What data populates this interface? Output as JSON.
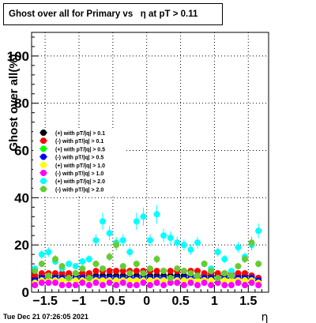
{
  "title": "Ghost over all for Primary vs   η at pT > 0.11",
  "timestamp": "Tue Dec 21 07:26:05 2021",
  "chart_data": {
    "type": "scatter",
    "xlabel": "η",
    "ylabel": "Ghost over all(%)",
    "xlim": [
      -1.7,
      1.8
    ],
    "ylim": [
      0,
      110
    ],
    "x_ticks": [
      -1.5,
      -1,
      -0.5,
      0,
      0.5,
      1,
      1.5
    ],
    "x_tick_labels": [
      "−1.5",
      "−1",
      "−0.5",
      "0",
      "0.5",
      "1",
      "1.5"
    ],
    "y_ticks": [
      0,
      20,
      40,
      60,
      80,
      100
    ],
    "y_tick_labels": [
      "0",
      "20",
      "40",
      "60",
      "80",
      "100"
    ],
    "grid": true,
    "legend_position": "left-middle",
    "x": [
      -1.65,
      -1.55,
      -1.45,
      -1.35,
      -1.25,
      -1.15,
      -1.05,
      -0.95,
      -0.85,
      -0.75,
      -0.65,
      -0.55,
      -0.45,
      -0.35,
      -0.25,
      -0.15,
      -0.05,
      0.05,
      0.15,
      0.25,
      0.35,
      0.45,
      0.55,
      0.65,
      0.75,
      0.85,
      0.95,
      1.05,
      1.15,
      1.25,
      1.35,
      1.45,
      1.55,
      1.65
    ],
    "series": [
      {
        "name": "(+) with pT/|q| > 0.1",
        "color": "#000000",
        "marker": "circle",
        "values": [
          6,
          7,
          7,
          7,
          7,
          7,
          7,
          7,
          7,
          7,
          7,
          7,
          7,
          7,
          7,
          7,
          7,
          7,
          7,
          7,
          7,
          7,
          7,
          7,
          7,
          7,
          7,
          7,
          7,
          7,
          7,
          7,
          7,
          6
        ]
      },
      {
        "name": "(-) with pT/|q| > 0.1",
        "color": "#ff0000",
        "marker": "circle",
        "values": [
          7,
          8,
          8,
          8,
          8,
          8,
          8,
          8,
          8,
          9,
          9,
          9,
          9,
          9,
          9,
          9,
          9,
          9,
          9,
          9,
          9,
          9,
          9,
          9,
          9,
          8,
          8,
          8,
          8,
          8,
          8,
          8,
          7,
          6
        ]
      },
      {
        "name": "(+) with pT/|q| > 0.5",
        "color": "#00ff00",
        "marker": "circle",
        "values": [
          5,
          6,
          6,
          6,
          6,
          6,
          6,
          6,
          6,
          6,
          6,
          6,
          6,
          6,
          6,
          6,
          6,
          6,
          6,
          6,
          6,
          6,
          6,
          6,
          6,
          6,
          6,
          6,
          6,
          6,
          6,
          6,
          6,
          5
        ]
      },
      {
        "name": "(-) with pT/|q| > 0.5",
        "color": "#0000ff",
        "marker": "circle",
        "values": [
          5,
          6,
          6,
          6,
          6,
          6,
          6,
          6,
          6,
          6,
          6,
          6,
          6,
          6,
          6,
          6,
          6,
          6,
          6,
          6,
          6,
          6,
          6,
          6,
          6,
          6,
          6,
          6,
          6,
          6,
          6,
          6,
          6,
          5
        ]
      },
      {
        "name": "(+) with pT/|q| > 1.0",
        "color": "#ffff00",
        "marker": "circle",
        "values": [
          4,
          5,
          5,
          5,
          5,
          5,
          5,
          5,
          5,
          5,
          5,
          5,
          5,
          5,
          5,
          5,
          5,
          5,
          5,
          5,
          5,
          5,
          5,
          5,
          5,
          5,
          5,
          5,
          5,
          5,
          5,
          5,
          5,
          4
        ]
      },
      {
        "name": "(-) with pT/|q| > 1.0",
        "color": "#ff00ff",
        "marker": "circle",
        "values": [
          3,
          4,
          4,
          4,
          3,
          3,
          3,
          4,
          3,
          4,
          3,
          4,
          3,
          4,
          3,
          3,
          4,
          3,
          4,
          3,
          4,
          4,
          3,
          4,
          3,
          4,
          3,
          4,
          3,
          3,
          4,
          3,
          4,
          3
        ]
      },
      {
        "name": "(+) with pT/|q| > 2.0",
        "color": "#00ffff",
        "marker": "circle",
        "values": [
          10,
          16,
          17,
          13,
          10,
          12,
          11,
          13,
          14,
          22,
          30,
          25,
          21,
          22,
          17,
          30,
          32,
          22,
          33,
          24,
          23,
          21,
          20,
          18,
          21,
          12,
          10,
          17,
          14,
          9,
          19,
          15,
          20,
          26
        ]
      },
      {
        "name": "(-) with pT/|q| > 2.0",
        "color": "#66cc33",
        "marker": "circle",
        "values": [
          9,
          12,
          7,
          14,
          11,
          6,
          8,
          10,
          6,
          12,
          10,
          15,
          20,
          11,
          8,
          12,
          8,
          10,
          14,
          9,
          6,
          10,
          9,
          8,
          7,
          12,
          9,
          6,
          8,
          7,
          11,
          14,
          21,
          12
        ]
      }
    ]
  }
}
